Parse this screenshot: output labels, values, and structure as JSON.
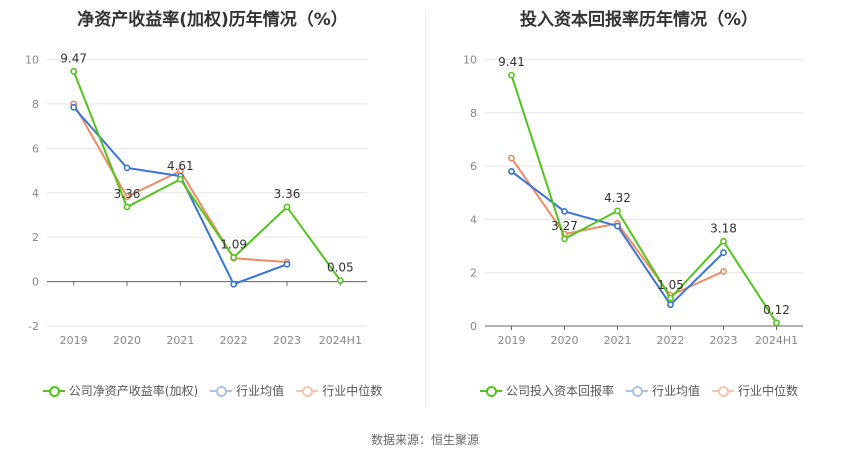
{
  "source": "数据来源：恒生聚源",
  "chart_data": [
    {
      "type": "line",
      "title": "净资产收益率(加权)历年情况（%）",
      "categories": [
        "2019",
        "2020",
        "2021",
        "2022",
        "2023",
        "2024H1"
      ],
      "ylim": [
        -2,
        10
      ],
      "yticks": [
        -2,
        0,
        2,
        4,
        6,
        8,
        10
      ],
      "grid": true,
      "legend_position": "bottom",
      "series": [
        {
          "name": "公司净资产收益率(加权)",
          "color": "#52c41a",
          "values": [
            9.47,
            3.36,
            4.61,
            1.09,
            3.36,
            0.05
          ],
          "labels": [
            "9.47",
            "3.36",
            "4.61",
            "1.09",
            "3.36",
            "0.05"
          ]
        },
        {
          "name": "行业均值",
          "color": "#3a75d6",
          "values": [
            7.85,
            5.12,
            4.75,
            -0.12,
            0.78,
            null
          ]
        },
        {
          "name": "行业中位数",
          "color": "#f08a63",
          "values": [
            8.0,
            3.82,
            4.98,
            1.05,
            0.88,
            null
          ]
        }
      ]
    },
    {
      "type": "line",
      "title": "投入资本回报率历年情况（%）",
      "categories": [
        "2019",
        "2020",
        "2021",
        "2022",
        "2023",
        "2024H1"
      ],
      "ylim": [
        0,
        10
      ],
      "yticks": [
        0,
        2,
        4,
        6,
        8,
        10
      ],
      "grid": true,
      "legend_position": "bottom",
      "series": [
        {
          "name": "公司投入资本回报率",
          "color": "#52c41a",
          "values": [
            9.41,
            3.27,
            4.32,
            1.05,
            3.18,
            0.12
          ],
          "labels": [
            "9.41",
            "3.27",
            "4.32",
            "1.05",
            "3.18",
            "0.12"
          ]
        },
        {
          "name": "行业均值",
          "color": "#3a75d6",
          "values": [
            5.8,
            4.3,
            3.75,
            0.8,
            2.75,
            null
          ]
        },
        {
          "name": "行业中位数",
          "color": "#f08a63",
          "values": [
            6.3,
            3.45,
            3.85,
            1.15,
            2.05,
            null
          ]
        }
      ]
    }
  ]
}
